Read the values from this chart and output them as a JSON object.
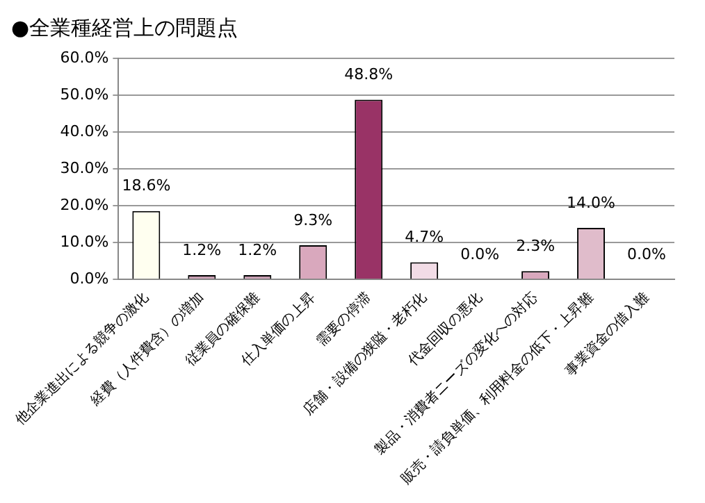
{
  "chart_data": {
    "type": "bar",
    "title": "●全業種経営上の問題点",
    "categories": [
      "他企業進出による競争の激化",
      "経費（人件費含）の増加",
      "従業員の確保難",
      "仕入単価の上昇",
      "需要の停滞",
      "店舗・設備の狭隘・老朽化",
      "代金回収の悪化",
      "製品・消費者ニーズの変化への対応",
      "販売・請負単価、利用料金の低下・上昇難",
      "事業資金の借入難"
    ],
    "values": [
      18.6,
      1.2,
      1.2,
      9.3,
      48.8,
      4.7,
      0.0,
      2.3,
      14.0,
      0.0
    ],
    "value_labels": [
      "18.6%",
      "1.2%",
      "1.2%",
      "9.3%",
      "48.8%",
      "4.7%",
      "0.0%",
      "2.3%",
      "14.0%",
      "0.0%"
    ],
    "colors": [
      "#fffff0",
      "#c9a0b4",
      "#c9a0b4",
      "#d9a8bd",
      "#993366",
      "#f2dce6",
      "#ffffff",
      "#d9a8bd",
      "#e0bccb",
      "#ffffff"
    ],
    "ylim": [
      0,
      60
    ],
    "yticks": [
      {
        "value": 0,
        "label": "0.0%"
      },
      {
        "value": 10,
        "label": "10.0%"
      },
      {
        "value": 20,
        "label": "20.0%"
      },
      {
        "value": 30,
        "label": "30.0%"
      },
      {
        "value": 40,
        "label": "40.0%"
      },
      {
        "value": 50,
        "label": "50.0%"
      },
      {
        "value": 60,
        "label": "60.0%"
      }
    ],
    "grid": "y",
    "legend": false
  }
}
